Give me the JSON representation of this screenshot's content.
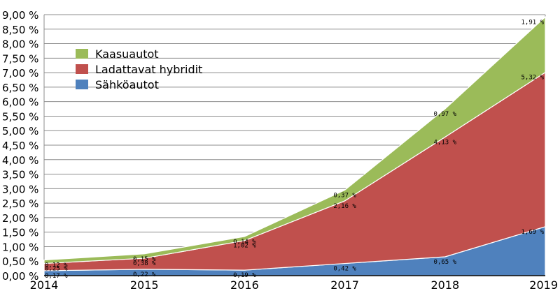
{
  "chart_data": {
    "type": "area",
    "stacked": true,
    "title": "",
    "xlabel": "",
    "ylabel": "",
    "categories": [
      "2014",
      "2015",
      "2016",
      "2017",
      "2018",
      "2019"
    ],
    "ylim": [
      0,
      9
    ],
    "y_ticks": [
      "0,00 %",
      "0,50 %",
      "1,00 %",
      "1,50 %",
      "2,00 %",
      "2,50 %",
      "3,00 %",
      "3,50 %",
      "4,00 %",
      "4,50 %",
      "5,00 %",
      "5,50 %",
      "6,00 %",
      "6,50 %",
      "7,00 %",
      "7,50 %",
      "8,00 %",
      "8,50 %",
      "9,00 %"
    ],
    "grid": true,
    "legend_position": "top-left",
    "series": [
      {
        "name": "Sähköautot",
        "color": "#4f81bd",
        "values": [
          0.17,
          0.22,
          0.19,
          0.42,
          0.65,
          1.69
        ],
        "data_labels": [
          "0,17 %",
          "0,22 %",
          "0,19 %",
          "0,42 %",
          "0,65 %",
          "1,69 %"
        ]
      },
      {
        "name": "Ladattavat hybridit",
        "color": "#c0504d",
        "values": [
          0.25,
          0.38,
          1.02,
          2.16,
          4.13,
          5.32
        ],
        "data_labels": [
          "0,25 %",
          "0,38 %",
          "1,02 %",
          "2,16 %",
          "4,13 %",
          "5,32 %"
        ]
      },
      {
        "name": "Kaasuautot",
        "color": "#9bbb59",
        "values": [
          0.12,
          0.15,
          0.14,
          0.37,
          0.97,
          1.91
        ],
        "data_labels": [
          "0,12 %",
          "0,15 %",
          "0,14 %",
          "0,37 %",
          "0,97 %",
          "1,91 %"
        ]
      }
    ],
    "legend_order": [
      "Kaasuautot",
      "Ladattavat hybridit",
      "Sähköautot"
    ]
  }
}
